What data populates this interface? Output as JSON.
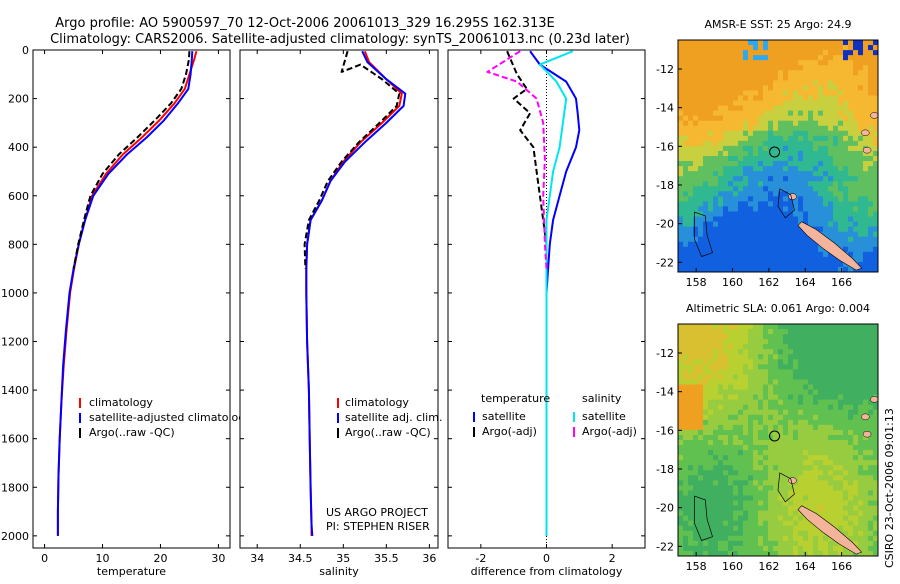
{
  "header": {
    "line1": "Argo profile: AO 5900597_70 12-Oct-2006 20061013_329 16.295S 162.313E",
    "line2": "Climatology: CARS2006. Satellite-adjusted climatology: synTS_20061013.nc (0.23d later)"
  },
  "footer": {
    "project": "US ARGO PROJECT",
    "pi": "PI: STEPHEN RISER",
    "credit": "CSIRO 23-Oct-2006 09:01:13"
  },
  "colors": {
    "climatology": "#ff0000",
    "satellite": "#0000ff",
    "argo": "#000000",
    "sat_salinity": "#00e5ee",
    "argo_salinity_adj": "#ff00ff",
    "land": "#f4b49c"
  },
  "chart_data": [
    {
      "id": "temperature",
      "type": "line",
      "xlabel": "temperature",
      "ylabel": "",
      "xlim": [
        -2,
        32
      ],
      "ylim": [
        2050,
        0
      ],
      "xticks": [
        0,
        10,
        20,
        30
      ],
      "xtick_labels": [
        "0",
        "10",
        "20",
        "30"
      ],
      "yticks": [
        0,
        200,
        400,
        600,
        800,
        1000,
        1200,
        1400,
        1600,
        1800,
        2000
      ],
      "ytick_labels": [
        "0",
        "200",
        "400",
        "600",
        "800",
        "1000",
        "1200",
        "1400",
        "1600",
        "1800",
        "2000"
      ],
      "legend": {
        "position": "lower-right",
        "entries": [
          "climatology",
          "satellite-adjusted climatology",
          "Argo(..raw -QC)"
        ]
      },
      "series": [
        {
          "name": "climatology",
          "color": "#ff0000",
          "style": "solid",
          "x": [
            26.2,
            25.8,
            25.0,
            24.2,
            22.4,
            19.8,
            16.8,
            13.5,
            10.6,
            8.2,
            7.0,
            5.9,
            5.1,
            4.4,
            3.8,
            3.3,
            2.9,
            2.6,
            2.4,
            2.3,
            2.3
          ],
          "y": [
            5,
            40,
            100,
            160,
            220,
            290,
            360,
            430,
            510,
            600,
            700,
            800,
            900,
            1000,
            1150,
            1300,
            1450,
            1600,
            1750,
            1900,
            2000
          ]
        },
        {
          "name": "satellite-adjusted climatology",
          "color": "#0000ff",
          "style": "solid",
          "x": [
            25.5,
            25.4,
            25.2,
            24.8,
            23.0,
            20.6,
            17.6,
            14.2,
            11.0,
            8.4,
            7.0,
            5.9,
            5.0,
            4.3,
            3.7,
            3.2,
            2.9,
            2.6,
            2.4,
            2.3,
            2.3
          ],
          "y": [
            5,
            40,
            100,
            160,
            220,
            290,
            360,
            430,
            510,
            600,
            700,
            800,
            900,
            1000,
            1150,
            1300,
            1450,
            1600,
            1750,
            1900,
            2000
          ]
        },
        {
          "name": "Argo(..raw -QC)",
          "color": "#000000",
          "style": "dashed",
          "x": [
            25.0,
            24.9,
            24.4,
            23.6,
            21.8,
            19.0,
            16.0,
            12.8,
            10.0,
            7.9,
            6.8,
            5.8,
            5.0
          ],
          "y": [
            5,
            40,
            100,
            160,
            220,
            290,
            360,
            430,
            510,
            600,
            700,
            800,
            900
          ]
        }
      ]
    },
    {
      "id": "salinity",
      "type": "line",
      "xlabel": "salinity",
      "ylabel": "",
      "xlim": [
        33.8,
        36.1
      ],
      "ylim": [
        2050,
        0
      ],
      "xticks": [
        34,
        34.5,
        35,
        35.5,
        36
      ],
      "xtick_labels": [
        "34",
        "34.5",
        "35",
        "35.5",
        "36"
      ],
      "legend": {
        "position": "lower-right",
        "entries": [
          "climatology",
          "satellite adj. clim.",
          "Argo(..raw -QC)"
        ]
      },
      "series": [
        {
          "name": "climatology",
          "color": "#ff0000",
          "style": "solid",
          "x": [
            35.25,
            35.3,
            35.5,
            35.68,
            35.65,
            35.45,
            35.2,
            35.0,
            34.85,
            34.75,
            34.62,
            34.58,
            34.57,
            34.57,
            34.58,
            34.6,
            34.61,
            34.62,
            34.63,
            34.63
          ],
          "y": [
            5,
            50,
            120,
            180,
            230,
            300,
            380,
            460,
            540,
            620,
            700,
            800,
            900,
            1000,
            1200,
            1400,
            1600,
            1800,
            1950,
            2000
          ]
        },
        {
          "name": "satellite adj. clim.",
          "color": "#0000ff",
          "style": "solid",
          "x": [
            35.22,
            35.28,
            35.5,
            35.72,
            35.7,
            35.5,
            35.25,
            35.02,
            34.85,
            34.75,
            34.62,
            34.58,
            34.57,
            34.57,
            34.58,
            34.6,
            34.61,
            34.62,
            34.63,
            34.64
          ],
          "y": [
            5,
            50,
            120,
            180,
            230,
            300,
            380,
            460,
            540,
            620,
            700,
            800,
            900,
            1000,
            1200,
            1400,
            1600,
            1800,
            1950,
            2000
          ]
        },
        {
          "name": "Argo(..raw -QC)",
          "color": "#000000",
          "style": "dashed",
          "x": [
            35.05,
            34.98,
            35.2,
            35.45,
            35.65,
            35.62,
            35.42,
            35.18,
            34.98,
            34.82,
            34.72,
            34.6,
            34.55,
            34.56
          ],
          "y": [
            5,
            90,
            60,
            120,
            180,
            230,
            300,
            380,
            460,
            540,
            620,
            700,
            800,
            900
          ]
        }
      ]
    },
    {
      "id": "difference",
      "type": "line",
      "xlabel": "difference from climatology",
      "ylabel": "",
      "xlim": [
        -3,
        3
      ],
      "ylim": [
        2050,
        0
      ],
      "xticks": [
        -2,
        0,
        2
      ],
      "xtick_labels": [
        "-2",
        "0",
        "2"
      ],
      "legend": {
        "position": "lower-right",
        "columns": [
          {
            "heading": "temperature",
            "entries": [
              "satellite",
              "Argo(-adj)"
            ]
          },
          {
            "heading": "salinity",
            "entries": [
              "satellite",
              "Argo(-adj)"
            ]
          }
        ]
      },
      "series": [
        {
          "name": "temperature satellite",
          "color": "#0000ff",
          "style": "solid",
          "x": [
            -0.5,
            -0.2,
            0.6,
            0.9,
            0.95,
            1.0,
            0.9,
            0.6,
            0.4,
            0.2,
            0.1,
            0.05,
            0.0,
            0.0
          ],
          "y": [
            5,
            60,
            130,
            200,
            260,
            330,
            400,
            500,
            600,
            700,
            800,
            900,
            1000,
            2000
          ]
        },
        {
          "name": "temperature Argo(-adj)",
          "color": "#000000",
          "style": "dashed",
          "x": [
            -1.2,
            -0.9,
            -0.6,
            -1.0,
            -0.5,
            -0.8,
            -0.4,
            -0.3,
            -0.2,
            -0.1,
            0.0
          ],
          "y": [
            5,
            100,
            160,
            200,
            260,
            330,
            400,
            500,
            600,
            700,
            800
          ]
        },
        {
          "name": "salinity satellite",
          "color": "#00e5ee",
          "style": "solid",
          "x": [
            0.8,
            -0.2,
            0.3,
            0.6,
            0.5,
            0.4,
            0.2,
            0.1,
            0.0,
            0.0
          ],
          "y": [
            5,
            60,
            130,
            200,
            300,
            400,
            500,
            600,
            700,
            2000
          ]
        },
        {
          "name": "salinity Argo(-adj)",
          "color": "#ff00ff",
          "style": "dashed",
          "x": [
            -0.8,
            -1.8,
            -0.9,
            -0.3,
            -0.1,
            -0.05,
            -0.1,
            -0.05,
            0.0
          ],
          "y": [
            5,
            90,
            130,
            200,
            300,
            450,
            600,
            800,
            900
          ]
        }
      ]
    },
    {
      "id": "sst_map",
      "type": "heatmap",
      "title": "AMSR-E SST: 25 Argo: 24.9",
      "xlim": [
        157,
        168
      ],
      "ylim": [
        -22.5,
        -10.5
      ],
      "xticks": [
        158,
        160,
        162,
        164,
        166
      ],
      "xtick_labels": [
        "158",
        "160",
        "162",
        "164",
        "166"
      ],
      "yticks": [
        -12,
        -14,
        -16,
        -18,
        -20,
        -22
      ],
      "ytick_labels": [
        "-12",
        "-14",
        "-16",
        "-18",
        "-20",
        "-22"
      ],
      "argo_position": [
        162.313,
        -16.295
      ],
      "value_note": "warm orange north, green centre, cool blue south"
    },
    {
      "id": "sla_map",
      "type": "heatmap",
      "title": "Altimetric SLA: 0.061 Argo: 0.004",
      "xlim": [
        157,
        168
      ],
      "ylim": [
        -22.5,
        -10.5
      ],
      "xticks": [
        158,
        160,
        162,
        164,
        166
      ],
      "xtick_labels": [
        "158",
        "160",
        "162",
        "164",
        "166"
      ],
      "yticks": [
        -12,
        -14,
        -16,
        -18,
        -20,
        -22
      ],
      "ytick_labels": [
        "-12",
        "-14",
        "-16",
        "-18",
        "-20",
        "-22"
      ],
      "argo_position": [
        162.313,
        -16.295
      ],
      "value_note": "yellow-green field, orange west"
    }
  ]
}
